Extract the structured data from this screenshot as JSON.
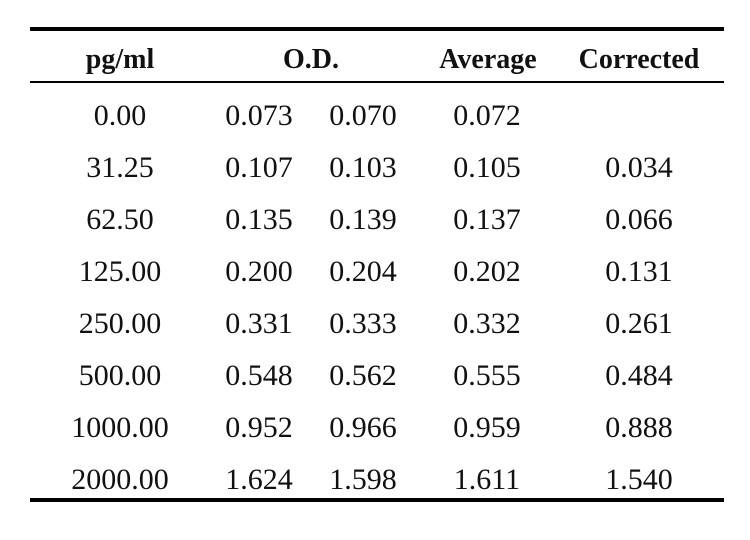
{
  "table": {
    "headers": {
      "concentration": "pg/ml",
      "od": "O.D.",
      "average": "Average",
      "corrected": "Corrected"
    },
    "rows": [
      {
        "concentration": "0.00",
        "od1": "0.073",
        "od2": "0.070",
        "average": "0.072",
        "corrected": ""
      },
      {
        "concentration": "31.25",
        "od1": "0.107",
        "od2": "0.103",
        "average": "0.105",
        "corrected": "0.034"
      },
      {
        "concentration": "62.50",
        "od1": "0.135",
        "od2": "0.139",
        "average": "0.137",
        "corrected": "0.066"
      },
      {
        "concentration": "125.00",
        "od1": "0.200",
        "od2": "0.204",
        "average": "0.202",
        "corrected": "0.131"
      },
      {
        "concentration": "250.00",
        "od1": "0.331",
        "od2": "0.333",
        "average": "0.332",
        "corrected": "0.261"
      },
      {
        "concentration": "500.00",
        "od1": "0.548",
        "od2": "0.562",
        "average": "0.555",
        "corrected": "0.484"
      },
      {
        "concentration": "1000.00",
        "od1": "0.952",
        "od2": "0.966",
        "average": "0.959",
        "corrected": "0.888"
      },
      {
        "concentration": "2000.00",
        "od1": "1.624",
        "od2": "1.598",
        "average": "1.611",
        "corrected": "1.540"
      }
    ]
  }
}
